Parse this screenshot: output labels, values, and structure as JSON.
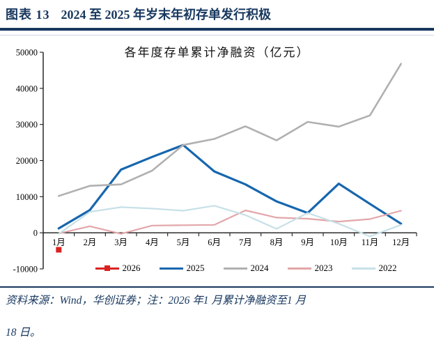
{
  "header": {
    "label": "图表 13",
    "title": "2024 至 2025 年岁末年初存单发行积极"
  },
  "footer": {
    "line1": "资料来源：Wind，华创证券；注：2026 年1 月累计净融资至1 月",
    "line2": "18 日。"
  },
  "colors": {
    "navy": "#17375e",
    "axis": "#1a1a1a",
    "red_2026": "#d92322",
    "blue_2025": "#1666ae",
    "gray_2024": "#b0b0b0",
    "pink_2023": "#e2a6a9",
    "lightblue_2022": "#c7e0e8"
  },
  "chart_data": {
    "type": "line",
    "title": "各年度存单累计净融资（亿元）",
    "categories": [
      "1月",
      "2月",
      "3月",
      "4月",
      "5月",
      "6月",
      "7月",
      "8月",
      "9月",
      "10月",
      "11月",
      "12月"
    ],
    "series": [
      {
        "name": "2026",
        "color": "#d92322",
        "width": 2.6,
        "marker": "square",
        "values": [
          -4700,
          null,
          null,
          null,
          null,
          null,
          null,
          null,
          null,
          null,
          null,
          null
        ]
      },
      {
        "name": "2025",
        "color": "#1666ae",
        "width": 3.2,
        "values": [
          1200,
          6300,
          17500,
          21000,
          24300,
          17000,
          13400,
          8700,
          5500,
          13600,
          8000,
          2500
        ]
      },
      {
        "name": "2024",
        "color": "#b0b0b0",
        "width": 2.6,
        "values": [
          10200,
          13000,
          13400,
          17200,
          24300,
          26000,
          29500,
          25600,
          30700,
          29400,
          32500,
          46800
        ]
      },
      {
        "name": "2023",
        "color": "#e2a6a9",
        "width": 2.2,
        "values": [
          -200,
          1800,
          -300,
          2000,
          2100,
          2200,
          6200,
          4200,
          3900,
          3100,
          3800,
          6100
        ]
      },
      {
        "name": "2022",
        "color": "#c7e0e8",
        "width": 2.2,
        "values": [
          -300,
          5800,
          7100,
          6700,
          6100,
          7500,
          4900,
          1100,
          5500,
          2500,
          -1000,
          2200
        ]
      }
    ],
    "ylim": [
      -10000,
      50000
    ],
    "ytick_step": 10000,
    "xlabel": "",
    "ylabel": "",
    "legend_position": "bottom",
    "grid": false
  }
}
